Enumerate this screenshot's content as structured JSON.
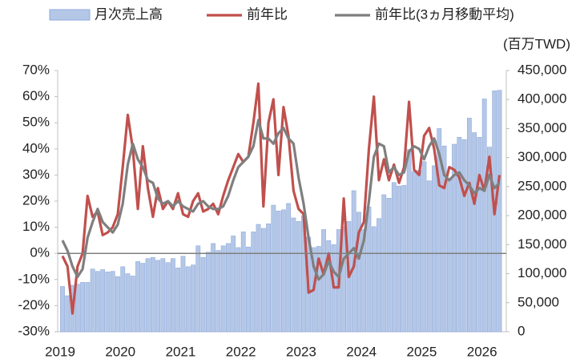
{
  "chart_data": {
    "type": "bar_line",
    "y2_axis_label": "(百万TWD)",
    "categories": [
      "2019",
      null,
      null,
      null,
      null,
      null,
      null,
      null,
      null,
      null,
      null,
      null,
      "2020",
      null,
      null,
      null,
      null,
      null,
      null,
      null,
      null,
      null,
      null,
      null,
      "2021",
      null,
      null,
      null,
      null,
      null,
      null,
      null,
      null,
      null,
      null,
      null,
      "2022",
      null,
      null,
      null,
      null,
      null,
      null,
      null,
      null,
      null,
      null,
      null,
      "2023",
      null,
      null,
      null,
      null,
      null,
      null,
      null,
      null,
      null,
      null,
      null,
      "2024",
      null,
      null,
      null,
      null,
      null,
      null,
      null,
      null,
      null,
      null,
      null,
      "2025",
      null,
      null,
      null,
      null,
      null,
      null,
      null,
      null,
      null,
      null,
      null,
      "2026",
      null,
      null,
      null
    ],
    "series": [
      {
        "name": "月次売上高",
        "type": "bar",
        "axis": "y2",
        "color": "#b4c7e7",
        "values": [
          78000,
          62000,
          80000,
          82000,
          85000,
          85000,
          108000,
          104000,
          107000,
          103000,
          104000,
          95000,
          112000,
          100000,
          96000,
          121000,
          118000,
          126000,
          128000,
          123000,
          126000,
          119000,
          126000,
          110000,
          130000,
          112000,
          115000,
          148000,
          128000,
          137000,
          152000,
          140000,
          148000,
          152000,
          165000,
          145000,
          172000,
          146000,
          172000,
          185000,
          178000,
          186000,
          218000,
          208000,
          210000,
          221000,
          196000,
          190000,
          200000,
          163000,
          145000,
          147000,
          176000,
          157000,
          150000,
          176000,
          180000,
          190000,
          243000,
          206000,
          176000,
          215000,
          181000,
          195000,
          236000,
          230000,
          257000,
          251000,
          252000,
          314000,
          276000,
          278000,
          293000,
          260000,
          286000,
          350000,
          320000,
          264000,
          323000,
          335000,
          331000,
          368000,
          343000,
          335000,
          401000,
          318000,
          415000,
          416000
        ]
      },
      {
        "name": "前年比",
        "type": "line",
        "color": "#c0504d",
        "values": [
          -1,
          -5,
          -23,
          -5,
          0,
          22,
          14,
          16,
          7,
          8,
          10,
          15,
          33,
          53,
          40,
          17,
          41,
          25,
          14,
          25,
          17,
          20,
          17,
          23,
          15,
          14,
          20,
          23,
          16,
          17,
          19,
          15,
          22,
          28,
          33,
          38,
          35,
          37,
          50,
          65,
          18,
          50,
          59,
          30,
          56,
          45,
          24,
          17,
          15,
          -15,
          -14,
          -2,
          -8,
          0,
          -13,
          -13,
          21,
          -9,
          -5,
          8,
          12,
          40,
          60,
          28,
          36,
          28,
          34,
          27,
          33,
          58,
          32,
          30,
          45,
          48,
          40,
          26,
          25,
          33,
          32,
          29,
          22,
          27,
          19,
          30,
          24,
          37,
          15,
          30
        ]
      },
      {
        "name": "前年比(3ヵ月移動平均)",
        "type": "line",
        "color": "#7f7f7f",
        "values": [
          5,
          1,
          -5,
          -9,
          -6,
          6,
          12,
          17,
          12,
          10,
          8,
          11,
          19,
          34,
          42,
          36,
          33,
          28,
          27,
          21,
          19,
          20,
          18,
          20,
          18,
          17,
          16,
          19,
          20,
          18,
          17,
          17,
          18,
          22,
          28,
          33,
          35,
          37,
          41,
          51,
          44,
          44,
          42,
          46,
          48,
          44,
          42,
          29,
          19,
          6,
          -5,
          -10,
          -8,
          -3,
          -7,
          -9,
          -2,
          0,
          2,
          -2,
          5,
          20,
          37,
          42,
          41,
          31,
          33,
          30,
          31,
          39,
          41,
          40,
          36,
          41,
          44,
          38,
          30,
          28,
          30,
          31,
          28,
          26,
          23,
          25,
          24,
          30,
          25,
          27
        ]
      }
    ],
    "ylim": [
      -30,
      70
    ],
    "yticks": [
      {
        "value": -30,
        "label": "-30%"
      },
      {
        "value": -20,
        "label": "-20%"
      },
      {
        "value": -10,
        "label": "-10%"
      },
      {
        "value": 0,
        "label": "0%"
      },
      {
        "value": 10,
        "label": "10%"
      },
      {
        "value": 20,
        "label": "20%"
      },
      {
        "value": 30,
        "label": "30%"
      },
      {
        "value": 40,
        "label": "40%"
      },
      {
        "value": 50,
        "label": "50%"
      },
      {
        "value": 60,
        "label": "60%"
      },
      {
        "value": 70,
        "label": "70%"
      }
    ],
    "y2lim": [
      0,
      450000
    ],
    "y2ticks": [
      0,
      {
        "value": 50000,
        "label": "50,000"
      },
      {
        "value": 100000,
        "label": "100,000"
      },
      {
        "value": 150000,
        "label": "150,000"
      },
      {
        "value": 200000,
        "label": "200,000"
      },
      {
        "value": 250000,
        "label": "250,000"
      },
      {
        "value": 300000,
        "label": "300,000"
      },
      {
        "value": 350000,
        "label": "350,000"
      },
      {
        "value": 400000,
        "label": "400,000"
      },
      {
        "value": 450000,
        "label": "450,000"
      }
    ],
    "legend": "top"
  }
}
